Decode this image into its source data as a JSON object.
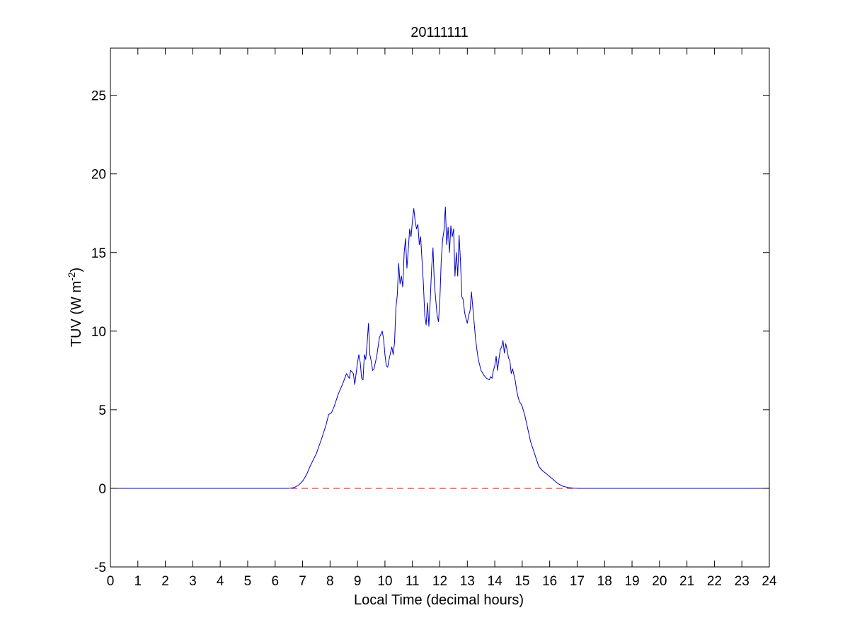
{
  "chart_data": {
    "type": "line",
    "title": "20111111",
    "xlabel": "Local Time (decimal hours)",
    "ylabel_main": "TUV (W m",
    "ylabel_sup": "-2",
    "ylabel_close": ")",
    "xlim": [
      0,
      24
    ],
    "ylim": [
      -5,
      28
    ],
    "xticks": [
      0,
      1,
      2,
      3,
      4,
      5,
      6,
      7,
      8,
      9,
      10,
      11,
      12,
      13,
      14,
      15,
      16,
      17,
      18,
      19,
      20,
      21,
      22,
      23,
      24
    ],
    "yticks": [
      -5,
      0,
      5,
      10,
      15,
      20,
      25
    ],
    "grid": false,
    "colors": {
      "series": "#0000cc",
      "reference": "#ff0000"
    },
    "reference_line": {
      "y": 0,
      "style": "dashed"
    },
    "series": [
      {
        "x": [
          0,
          6.5,
          6.7,
          6.85,
          7.0,
          7.15,
          7.3,
          7.5,
          7.7,
          7.85,
          7.95,
          8.05,
          8.15,
          8.3,
          8.45,
          8.6,
          8.7,
          8.75,
          8.85,
          8.9,
          9.0,
          9.05,
          9.1,
          9.15,
          9.2,
          9.25,
          9.3,
          9.35,
          9.4,
          9.45,
          9.5,
          9.55,
          9.6,
          9.65,
          9.7,
          9.8,
          9.9,
          9.95,
          10.0,
          10.05,
          10.1,
          10.15,
          10.2,
          10.25,
          10.3,
          10.35,
          10.4,
          10.45,
          10.5,
          10.55,
          10.6,
          10.65,
          10.7,
          10.75,
          10.8,
          10.85,
          10.9,
          10.95,
          11.0,
          11.05,
          11.1,
          11.15,
          11.2,
          11.25,
          11.3,
          11.35,
          11.4,
          11.45,
          11.5,
          11.55,
          11.6,
          11.65,
          11.7,
          11.75,
          11.8,
          11.85,
          11.9,
          11.95,
          12.0,
          12.05,
          12.1,
          12.15,
          12.2,
          12.25,
          12.3,
          12.35,
          12.4,
          12.45,
          12.5,
          12.55,
          12.6,
          12.65,
          12.7,
          12.75,
          12.8,
          12.85,
          12.9,
          12.95,
          13.0,
          13.05,
          13.1,
          13.15,
          13.2,
          13.25,
          13.3,
          13.35,
          13.4,
          13.5,
          13.6,
          13.7,
          13.8,
          13.85,
          13.9,
          13.95,
          14.0,
          14.05,
          14.1,
          14.15,
          14.2,
          14.25,
          14.3,
          14.35,
          14.4,
          14.45,
          14.5,
          14.55,
          14.6,
          14.65,
          14.7,
          14.75,
          14.8,
          14.85,
          14.9,
          14.95,
          15.0,
          15.1,
          15.2,
          15.3,
          15.45,
          15.6,
          15.75,
          15.9,
          16.1,
          16.3,
          16.5,
          16.7,
          16.9,
          17.1,
          17.2,
          24
        ],
        "y": [
          0,
          0,
          0.05,
          0.2,
          0.45,
          0.9,
          1.5,
          2.2,
          3.2,
          4.0,
          4.7,
          4.8,
          5.2,
          6.0,
          6.6,
          7.3,
          7.0,
          7.5,
          7.3,
          6.6,
          8.0,
          8.5,
          8.0,
          7.0,
          6.9,
          8.5,
          8.2,
          9.2,
          10.5,
          8.5,
          8.1,
          7.5,
          7.6,
          8.0,
          8.4,
          9.6,
          10.0,
          9.5,
          8.5,
          7.8,
          7.7,
          8.2,
          8.6,
          9.0,
          8.5,
          9.3,
          11.5,
          12.3,
          14.3,
          13.0,
          13.5,
          12.8,
          15.0,
          15.9,
          14.0,
          15.2,
          16.5,
          16.0,
          17.0,
          17.8,
          17.0,
          16.5,
          16.8,
          15.5,
          16.0,
          14.5,
          13.0,
          11.0,
          10.4,
          11.8,
          10.3,
          12.0,
          14.0,
          15.3,
          13.0,
          12.0,
          11.0,
          10.6,
          12.0,
          14.5,
          15.8,
          16.4,
          17.9,
          15.5,
          16.6,
          15.0,
          16.7,
          16.0,
          16.5,
          13.5,
          15.0,
          13.5,
          16.1,
          14.5,
          12.2,
          12.0,
          11.2,
          10.8,
          10.5,
          11.0,
          11.3,
          12.5,
          11.5,
          10.5,
          9.5,
          8.8,
          8.2,
          7.5,
          7.2,
          7.0,
          6.9,
          7.1,
          7.0,
          7.5,
          7.8,
          8.4,
          7.5,
          8.2,
          8.8,
          9.0,
          9.4,
          8.6,
          9.2,
          8.8,
          8.3,
          8.1,
          7.3,
          7.6,
          7.2,
          6.8,
          6.2,
          5.8,
          5.5,
          5.4,
          5.2,
          4.6,
          3.8,
          3.0,
          2.2,
          1.4,
          1.1,
          0.9,
          0.6,
          0.3,
          0.12,
          0.04,
          0.01,
          0,
          0,
          0
        ]
      }
    ]
  }
}
